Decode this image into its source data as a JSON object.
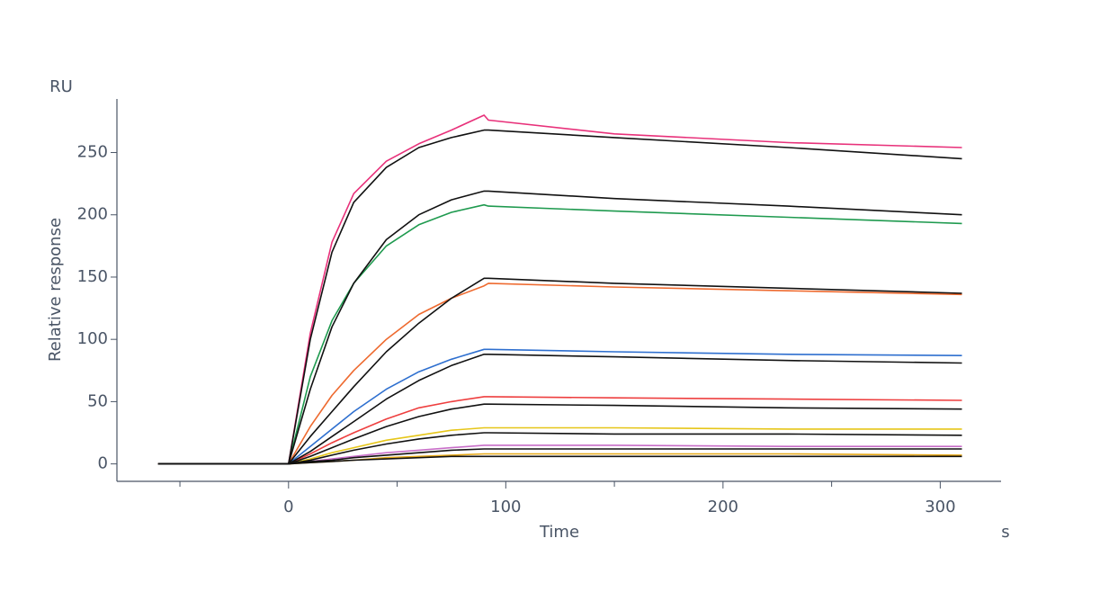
{
  "chart_data": {
    "type": "line",
    "ylabel_unit": "RU",
    "ylabel": "Relative response",
    "xlabel": "Time",
    "xlabel_unit": "s",
    "x": [
      -60,
      0,
      10,
      20,
      30,
      45,
      60,
      75,
      90,
      92,
      150,
      230,
      310
    ],
    "series": [
      {
        "color": "#e8317a",
        "values": [
          0,
          0,
          105,
          178,
          217,
          243,
          257,
          268,
          280,
          276,
          265,
          258,
          254
        ]
      },
      {
        "color": "#1f9a4f",
        "values": [
          0,
          0,
          70,
          115,
          145,
          175,
          192,
          202,
          208,
          207,
          203,
          198,
          193
        ]
      },
      {
        "color": "#ee6a2f",
        "values": [
          0,
          0,
          30,
          55,
          75,
          100,
          120,
          133,
          143,
          145,
          142,
          139,
          136
        ]
      },
      {
        "color": "#2e6fcf",
        "values": [
          0,
          0,
          14,
          28,
          42,
          60,
          74,
          84,
          92,
          92,
          90,
          88,
          87
        ]
      },
      {
        "color": "#ee3f3f",
        "values": [
          0,
          0,
          8,
          17,
          25,
          36,
          45,
          50,
          54,
          54,
          53,
          52,
          51
        ]
      },
      {
        "color": "#e6c619",
        "values": [
          0,
          0,
          4,
          9,
          13,
          19,
          23,
          27,
          29,
          29,
          29,
          28,
          28
        ]
      },
      {
        "color": "#c86ec8",
        "values": [
          0,
          0,
          2,
          4,
          6,
          9,
          11,
          13,
          15,
          15,
          15,
          14,
          14
        ]
      },
      {
        "color": "#e6a817",
        "values": [
          0,
          0,
          1,
          2,
          3,
          5,
          6,
          7,
          8,
          8,
          8,
          8,
          7
        ]
      },
      {
        "color": "#111111",
        "values": [
          0,
          0,
          100,
          170,
          210,
          238,
          254,
          262,
          268,
          268,
          262,
          254,
          245
        ]
      },
      {
        "color": "#111111",
        "values": [
          0,
          0,
          60,
          110,
          145,
          180,
          200,
          212,
          219,
          219,
          213,
          207,
          200
        ]
      },
      {
        "color": "#111111",
        "values": [
          0,
          0,
          22,
          42,
          62,
          90,
          113,
          133,
          149,
          149,
          145,
          141,
          137
        ]
      },
      {
        "color": "#111111",
        "values": [
          0,
          0,
          10,
          22,
          34,
          52,
          67,
          79,
          88,
          88,
          86,
          83,
          81
        ]
      },
      {
        "color": "#111111",
        "values": [
          0,
          0,
          6,
          13,
          20,
          30,
          38,
          44,
          48,
          48,
          47,
          45,
          44
        ]
      },
      {
        "color": "#111111",
        "values": [
          0,
          0,
          3,
          7,
          11,
          16,
          20,
          23,
          25,
          25,
          24,
          24,
          23
        ]
      },
      {
        "color": "#111111",
        "values": [
          0,
          0,
          2,
          3,
          5,
          7,
          9,
          11,
          12,
          12,
          12,
          12,
          12
        ]
      },
      {
        "color": "#111111",
        "values": [
          0,
          0,
          1,
          2,
          3,
          4,
          5,
          6,
          6,
          6,
          6,
          6,
          6
        ]
      }
    ],
    "xlim": [
      -79,
      328
    ],
    "xticks": [
      0,
      100,
      200,
      300
    ],
    "xminorticks": [
      -50,
      50,
      150,
      250
    ],
    "ylim": [
      -14,
      293
    ],
    "yticks": [
      0,
      50,
      100,
      150,
      200,
      250
    ]
  }
}
